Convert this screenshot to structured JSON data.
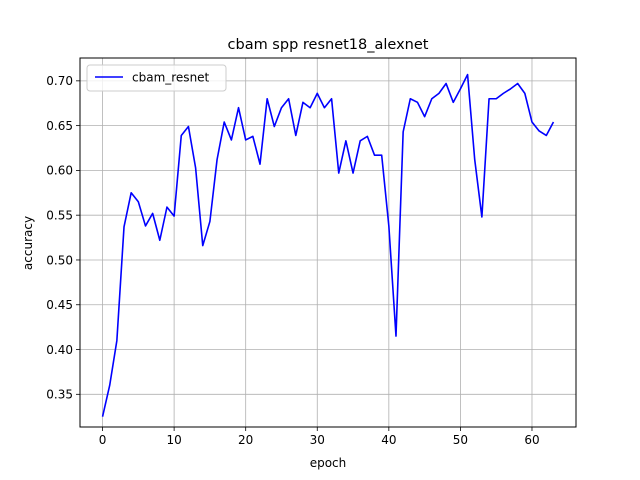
{
  "chart_data": {
    "type": "line",
    "title": "cbam spp resnet18_alexnet",
    "xlabel": "epoch",
    "ylabel": "accuracy",
    "xlim": [
      -3.15,
      66.15
    ],
    "ylim": [
      0.3135,
      0.7255
    ],
    "xticks": [
      0,
      10,
      20,
      30,
      40,
      50,
      60
    ],
    "yticks": [
      0.35,
      0.4,
      0.45,
      0.5,
      0.55,
      0.6,
      0.65,
      0.7
    ],
    "grid": true,
    "legend_position": "top-left",
    "series": [
      {
        "name": "cbam_resnet",
        "color": "#0000ff",
        "x": [
          0,
          1,
          2,
          3,
          4,
          5,
          6,
          7,
          8,
          9,
          10,
          11,
          12,
          13,
          14,
          15,
          16,
          17,
          18,
          19,
          20,
          21,
          22,
          23,
          24,
          25,
          26,
          27,
          28,
          29,
          30,
          31,
          32,
          33,
          34,
          35,
          36,
          37,
          38,
          39,
          40,
          41,
          42,
          43,
          44,
          45,
          46,
          47,
          48,
          49,
          50,
          51,
          52,
          53,
          54,
          55,
          56,
          57,
          58,
          59,
          60,
          61,
          62,
          63
        ],
        "values": [
          0.325,
          0.36,
          0.41,
          0.537,
          0.575,
          0.565,
          0.538,
          0.552,
          0.522,
          0.559,
          0.549,
          0.639,
          0.649,
          0.603,
          0.516,
          0.543,
          0.612,
          0.654,
          0.634,
          0.67,
          0.634,
          0.638,
          0.607,
          0.68,
          0.649,
          0.67,
          0.68,
          0.639,
          0.676,
          0.67,
          0.686,
          0.67,
          0.68,
          0.597,
          0.633,
          0.597,
          0.633,
          0.638,
          0.617,
          0.617,
          0.538,
          0.415,
          0.643,
          0.68,
          0.676,
          0.66,
          0.68,
          0.686,
          0.697,
          0.676,
          0.691,
          0.707,
          0.612,
          0.548,
          0.68,
          0.68,
          0.686,
          0.691,
          0.697,
          0.686,
          0.654,
          0.644,
          0.639,
          0.654
        ]
      }
    ]
  }
}
